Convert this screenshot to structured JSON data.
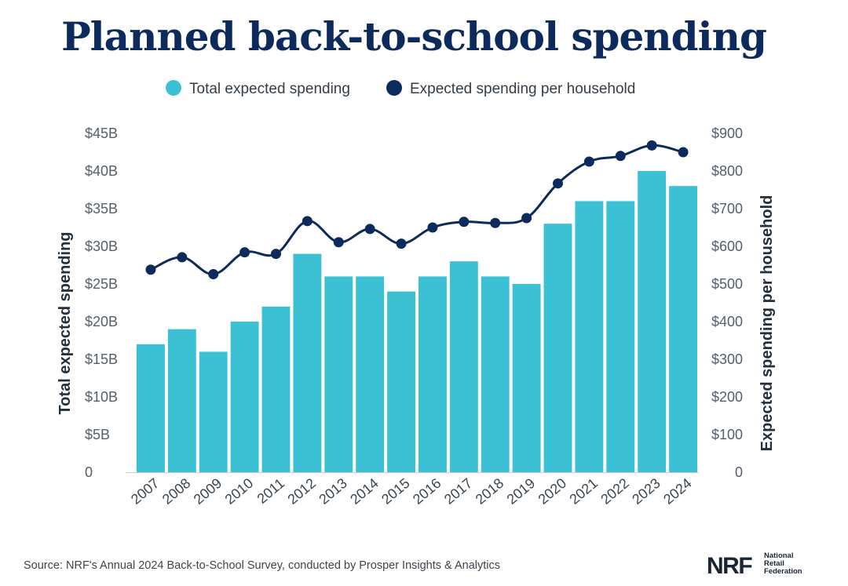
{
  "title": "Planned back-to-school spending",
  "legend": {
    "total": "Total expected spending",
    "per_household": "Expected spending per household"
  },
  "colors": {
    "bar": "#3cc1d4",
    "line": "#0d2a5c",
    "title": "#0d2a5c"
  },
  "source": "Source: NRF's Annual 2024 Back-to-School Survey, conducted by Prosper Insights & Analytics",
  "logo": {
    "mark": "NRF",
    "line1": "National",
    "line2": "Retail",
    "line3": "Federation"
  },
  "chart_data": {
    "type": "bar",
    "title": "Planned back-to-school spending",
    "categories": [
      "2007",
      "2008",
      "2009",
      "2010",
      "2011",
      "2012",
      "2013",
      "2014",
      "2015",
      "2016",
      "2017",
      "2018",
      "2019",
      "2020",
      "2021",
      "2022",
      "2023",
      "2024"
    ],
    "series": [
      {
        "name": "Total expected spending",
        "type": "bar",
        "axis": "left",
        "values": [
          17,
          19,
          16,
          20,
          22,
          29,
          26,
          26,
          24,
          26,
          28,
          26,
          25,
          33,
          36,
          36,
          40,
          38
        ]
      },
      {
        "name": "Expected spending per household",
        "type": "line",
        "axis": "right",
        "values": [
          538,
          571,
          526,
          584,
          580,
          667,
          611,
          646,
          607,
          650,
          665,
          662,
          675,
          767,
          825,
          840,
          868,
          850
        ]
      }
    ],
    "ylabel": "Total expected spending",
    "ylabel_right": "Expected spending per household",
    "ylim": [
      0,
      45
    ],
    "ylim_right": [
      0,
      900
    ],
    "yticks": [
      "0",
      "$5B",
      "$10B",
      "$15B",
      "$20B",
      "$25B",
      "$30B",
      "$35B",
      "$40B",
      "$45B"
    ],
    "yticks_right": [
      "0",
      "$100",
      "$200",
      "$300",
      "$400",
      "$500",
      "$600",
      "$700",
      "$800",
      "$900"
    ],
    "grid": false,
    "legend_position": "top"
  }
}
